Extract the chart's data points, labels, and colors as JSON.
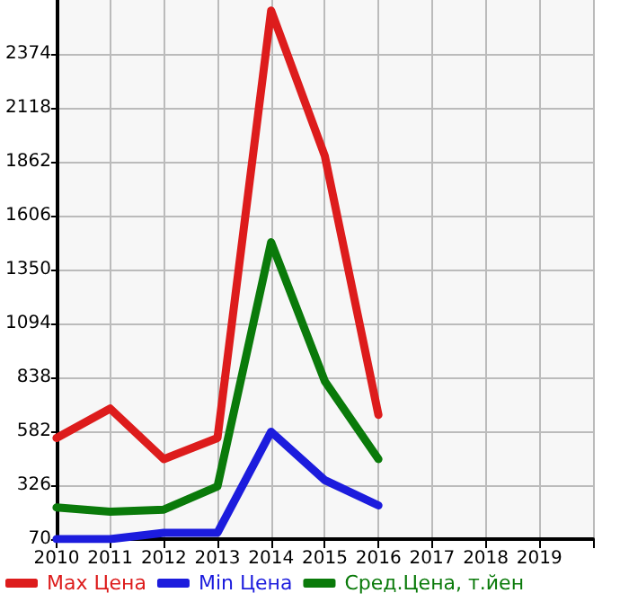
{
  "chart_data": {
    "type": "line",
    "x": [
      2010,
      2011,
      2012,
      2013,
      2014,
      2015,
      2016
    ],
    "series": [
      {
        "name": "Max Цена",
        "color": "#dd1c1c",
        "values": [
          550,
          690,
          450,
          550,
          2580,
          1890,
          660
        ]
      },
      {
        "name": "Min Цена",
        "color": "#1c1cdd",
        "values": [
          70,
          70,
          100,
          100,
          580,
          350,
          230
        ]
      },
      {
        "name": "Сред.Цена, т.йен",
        "color": "#0a7a0a",
        "values": [
          220,
          200,
          210,
          320,
          1480,
          820,
          450
        ]
      }
    ],
    "xlim": [
      2010,
      2020
    ],
    "xticks": [
      2010,
      2011,
      2012,
      2013,
      2014,
      2015,
      2016,
      2017,
      2018,
      2019,
      {
        "value": 2020,
        "label": null
      }
    ],
    "ylim": [
      70,
      2630
    ],
    "yticks": [
      70,
      326,
      582,
      838,
      1094,
      1350,
      1606,
      1862,
      2118,
      2374
    ],
    "grid": true,
    "legend": "bottom left",
    "marker": "none",
    "line_style": "solid"
  }
}
